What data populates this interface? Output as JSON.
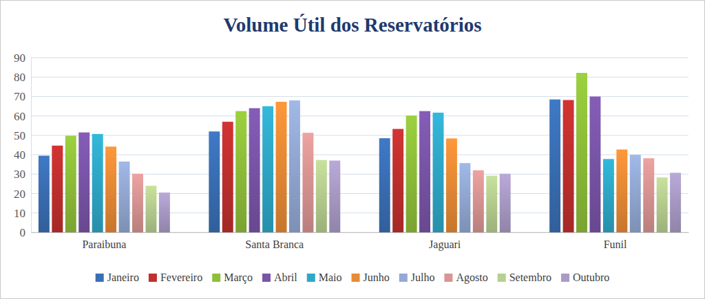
{
  "chart_data": {
    "type": "bar",
    "title": "Volume Útil dos Reservatórios",
    "categories": [
      "Paraibuna",
      "Santa Branca",
      "Jaguari",
      "Funil"
    ],
    "series": [
      {
        "name": "Janeiro",
        "color": "#3a6fb5",
        "values": [
          39.5,
          52,
          48.5,
          68.5
        ]
      },
      {
        "name": "Fevereiro",
        "color": "#c0302e",
        "values": [
          44.7,
          57,
          53.3,
          68.2
        ]
      },
      {
        "name": "Março",
        "color": "#8fbf3a",
        "values": [
          49.8,
          62.5,
          60.2,
          82.2
        ]
      },
      {
        "name": "Abril",
        "color": "#7a55a8",
        "values": [
          51.5,
          64,
          62.5,
          70
        ]
      },
      {
        "name": "Maio",
        "color": "#2fa8c8",
        "values": [
          50.7,
          65,
          61.7,
          37.8
        ]
      },
      {
        "name": "Junho",
        "color": "#e88b35",
        "values": [
          44.2,
          67.3,
          48.4,
          42.7
        ]
      },
      {
        "name": "Julho",
        "color": "#93a9d4",
        "values": [
          36.5,
          68,
          35.7,
          40
        ]
      },
      {
        "name": "Agosto",
        "color": "#d99593",
        "values": [
          30.2,
          51.3,
          32,
          38.2
        ]
      },
      {
        "name": "Setembro",
        "color": "#b7cf90",
        "values": [
          24,
          37.3,
          29.2,
          28.3
        ]
      },
      {
        "name": "Outubro",
        "color": "#a99bc6",
        "values": [
          20.5,
          37,
          30.2,
          30.7
        ]
      }
    ],
    "ylim": [
      0,
      90
    ],
    "yticks": [
      0,
      10,
      20,
      30,
      40,
      50,
      60,
      70,
      80,
      90
    ],
    "grid": true,
    "legend": "bottom"
  }
}
